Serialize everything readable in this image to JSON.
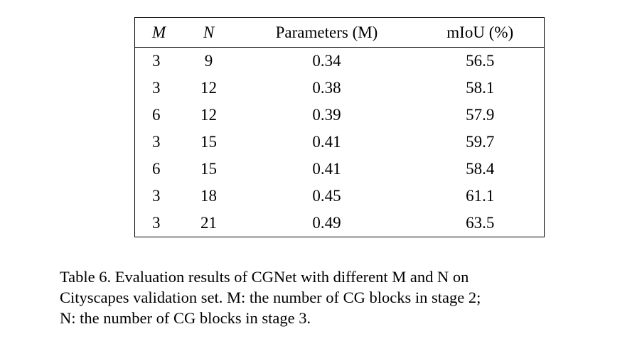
{
  "table": {
    "headers": [
      {
        "label": "M",
        "italic": true
      },
      {
        "label": "N",
        "italic": true
      },
      {
        "label": "Parameters (M)",
        "italic": false
      },
      {
        "label": "mIoU (%)",
        "italic": false
      }
    ],
    "rows": [
      [
        "3",
        "9",
        "0.34",
        "56.5"
      ],
      [
        "3",
        "12",
        "0.38",
        "58.1"
      ],
      [
        "6",
        "12",
        "0.39",
        "57.9"
      ],
      [
        "3",
        "15",
        "0.41",
        "59.7"
      ],
      [
        "6",
        "15",
        "0.41",
        "58.4"
      ],
      [
        "3",
        "18",
        "0.45",
        "61.1"
      ],
      [
        "3",
        "21",
        "0.49",
        "63.5"
      ]
    ]
  },
  "caption": {
    "lines": [
      "Table 6. Evaluation results of CGNet with different M and N on",
      "Cityscapes validation set. M: the number of CG blocks in stage 2;",
      "N: the number of CG blocks in stage 3."
    ]
  },
  "chart_data": {
    "type": "table",
    "title": "Table 6. Evaluation results of CGNet with different M and N on Cityscapes validation set. M: the number of CG blocks in stage 2; N: the number of CG blocks in stage 3.",
    "columns": [
      "M",
      "N",
      "Parameters (M)",
      "mIoU (%)"
    ],
    "rows": [
      [
        3,
        9,
        0.34,
        56.5
      ],
      [
        3,
        12,
        0.38,
        58.1
      ],
      [
        6,
        12,
        0.39,
        57.9
      ],
      [
        3,
        15,
        0.41,
        59.7
      ],
      [
        6,
        15,
        0.41,
        58.4
      ],
      [
        3,
        18,
        0.45,
        61.1
      ],
      [
        3,
        21,
        0.49,
        63.5
      ]
    ]
  }
}
